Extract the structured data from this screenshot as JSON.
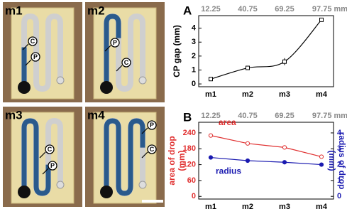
{
  "photos": [
    {
      "label": "m1",
      "annotations": [
        "C",
        "P"
      ]
    },
    {
      "label": "m2",
      "annotations": [
        "P",
        "C"
      ]
    },
    {
      "label": "m3",
      "annotations": [
        "C",
        "P"
      ]
    },
    {
      "label": "m4",
      "annotations": [
        "P",
        "C"
      ]
    }
  ],
  "chart_data": [
    {
      "type": "line",
      "panel_label": "A",
      "categories": [
        "m1",
        "m2",
        "m3",
        "m4"
      ],
      "top_labels": [
        "12.25",
        "40.75",
        "69.25",
        "97.75 mm"
      ],
      "ylabel": [
        "CP gap (mm)"
      ],
      "ylim": [
        -0.2,
        4.9
      ],
      "yticks": [
        0,
        1,
        2,
        3,
        4
      ],
      "series": [
        {
          "name": null,
          "color": "#000000",
          "values": [
            0.35,
            1.15,
            1.6,
            4.6
          ],
          "errors": [
            0.05,
            0.08,
            0.25,
            0.05
          ]
        }
      ]
    },
    {
      "type": "line",
      "panel_label": "B",
      "categories": [
        "m1",
        "m2",
        "m3",
        "m4"
      ],
      "top_labels": [
        "12.25",
        "40.75",
        "69.25",
        "97.75 mm"
      ],
      "ylabel": [
        "area of drop",
        "(mm)"
      ],
      "y2label": [
        "radius of drop",
        "(mm)"
      ],
      "ylim": [
        -10,
        280
      ],
      "yticks": [
        0,
        60,
        120,
        180,
        240
      ],
      "y2lim": [
        -0.17,
        4.67
      ],
      "y2ticks": [
        0,
        1,
        2,
        3,
        4
      ],
      "series": [
        {
          "name": "area",
          "color": "#e03030",
          "values": [
            230,
            200,
            185,
            150
          ]
        },
        {
          "name": "radius",
          "color": "#1a1ab0",
          "values": [
            2.45,
            2.25,
            2.15,
            2.0
          ],
          "axis": "y2"
        }
      ]
    }
  ]
}
